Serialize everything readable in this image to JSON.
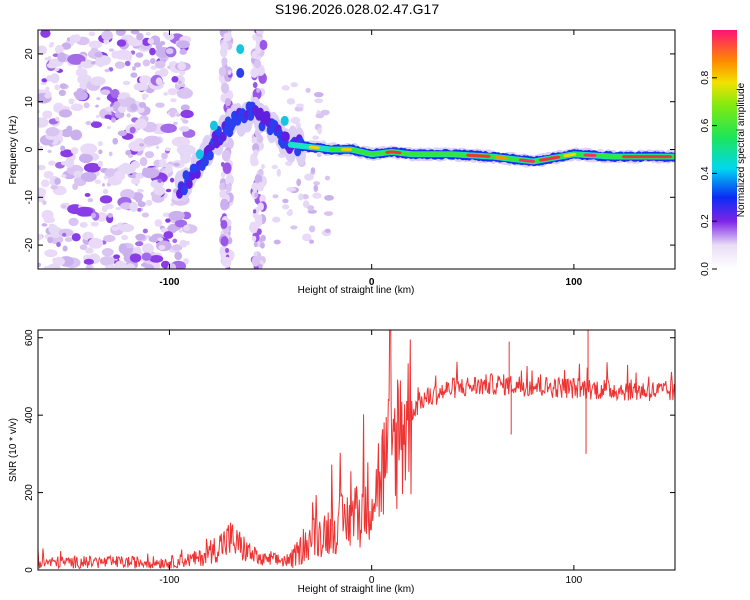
{
  "title": "S196.2026.028.02.47.G17",
  "chart_data": [
    {
      "type": "heatmap",
      "xlabel": "Height of straight line (km)",
      "ylabel": "Frequency (Hz)",
      "xlim": [
        -165,
        150
      ],
      "ylim": [
        -25,
        25
      ],
      "xticks": [
        -100,
        0,
        100
      ],
      "yticks": [
        -20,
        -10,
        0,
        10,
        20
      ],
      "colorbar": {
        "label": "Normalized spectral amplitude",
        "range": [
          0,
          1
        ],
        "ticks": [
          0.0,
          0.2,
          0.4,
          0.6,
          0.8
        ]
      },
      "ridge": [
        {
          "x": -95,
          "y": -8
        },
        {
          "x": -90,
          "y": -6
        },
        {
          "x": -85,
          "y": -3
        },
        {
          "x": -80,
          "y": 0
        },
        {
          "x": -75,
          "y": 3
        },
        {
          "x": -70,
          "y": 5
        },
        {
          "x": -60,
          "y": 8
        },
        {
          "x": -50,
          "y": 5
        },
        {
          "x": -45,
          "y": 3
        },
        {
          "x": -40,
          "y": 1
        },
        {
          "x": -30,
          "y": 0.5
        },
        {
          "x": -20,
          "y": 0
        },
        {
          "x": -10,
          "y": 0
        },
        {
          "x": 0,
          "y": -1
        },
        {
          "x": 10,
          "y": -0.5
        },
        {
          "x": 20,
          "y": -1
        },
        {
          "x": 40,
          "y": -1
        },
        {
          "x": 60,
          "y": -1.5
        },
        {
          "x": 80,
          "y": -2.5
        },
        {
          "x": 100,
          "y": -1
        },
        {
          "x": 120,
          "y": -1.5
        },
        {
          "x": 150,
          "y": -1.5
        }
      ]
    },
    {
      "type": "line",
      "xlabel": "Height of straight line (km)",
      "ylabel": "SNR (10 * v/v)",
      "xlim": [
        -165,
        150
      ],
      "ylim": [
        0,
        620
      ],
      "xticks": [
        -100,
        0,
        100
      ],
      "yticks": [
        0,
        200,
        400,
        600
      ],
      "color": "#ee3333",
      "envelope": [
        {
          "x": -165,
          "y": 20
        },
        {
          "x": -100,
          "y": 20
        },
        {
          "x": -85,
          "y": 30
        },
        {
          "x": -70,
          "y": 80
        },
        {
          "x": -55,
          "y": 25
        },
        {
          "x": -40,
          "y": 25
        },
        {
          "x": -30,
          "y": 80
        },
        {
          "x": -15,
          "y": 120
        },
        {
          "x": -5,
          "y": 150
        },
        {
          "x": 5,
          "y": 250
        },
        {
          "x": 15,
          "y": 380
        },
        {
          "x": 25,
          "y": 440
        },
        {
          "x": 40,
          "y": 470
        },
        {
          "x": 60,
          "y": 480
        },
        {
          "x": 100,
          "y": 470
        },
        {
          "x": 150,
          "y": 460
        }
      ],
      "spikes": [
        {
          "x": 69,
          "y": 350
        },
        {
          "x": 106,
          "y": 300
        },
        {
          "x": 107,
          "y": 620
        },
        {
          "x": 68,
          "y": 590
        }
      ]
    }
  ]
}
